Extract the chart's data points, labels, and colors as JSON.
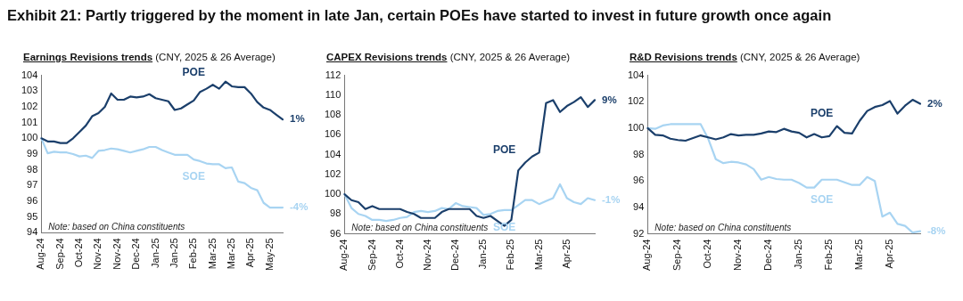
{
  "chart_data": [
    {
      "type": "other",
      "title": "Exhibit 21: Partly triggered by the moment in late Jan, certain POEs have started to invest in future growth once again"
    },
    {
      "type": "line",
      "title": "Earnings Revisions trends",
      "subtitle": "(CNY, 2025 & 26 Average)",
      "categories": [
        "Aug-24",
        null,
        null,
        "Sep-24",
        null,
        null,
        "Oct-24",
        null,
        null,
        "Nov-24",
        null,
        null,
        "Nov-24",
        null,
        null,
        "Dec-24",
        null,
        null,
        "Jan-25",
        null,
        null,
        "Jan-25",
        null,
        null,
        "Feb-25",
        null,
        null,
        "Mar-25",
        null,
        null,
        "Mar-25",
        null,
        null,
        "Apr-25",
        null,
        null,
        "May-25",
        null,
        null
      ],
      "series": [
        {
          "name": "POE",
          "color": "#1b3f6b",
          "values": [
            100,
            99.8,
            99.8,
            99.7,
            99.7,
            100,
            100.4,
            100.8,
            101.4,
            101.6,
            102,
            102.85,
            102.45,
            102.45,
            102.65,
            102.6,
            102.65,
            102.8,
            102.55,
            102.45,
            102.35,
            101.8,
            101.9,
            102.15,
            102.4,
            102.95,
            103.15,
            103.4,
            103.15,
            103.6,
            103.3,
            103.25,
            103.25,
            102.85,
            102.3,
            101.95,
            101.8,
            101.5,
            101.2
          ]
        },
        {
          "name": "SOE",
          "color": "#a8d4f2",
          "values": [
            100,
            99.05,
            99.15,
            99.1,
            99.1,
            99,
            98.85,
            98.9,
            98.75,
            99.2,
            99.25,
            99.35,
            99.3,
            99.2,
            99.1,
            99.2,
            99.3,
            99.45,
            99.45,
            99.25,
            99.1,
            98.95,
            98.95,
            98.95,
            98.65,
            98.55,
            98.4,
            98.35,
            98.35,
            98.1,
            98.15,
            97.25,
            97.15,
            96.85,
            96.7,
            95.9,
            95.6,
            95.6,
            95.6
          ]
        }
      ],
      "ylim": [
        94,
        104
      ],
      "yticks": [
        94,
        95,
        96,
        97,
        98,
        99,
        100,
        101,
        102,
        103,
        104
      ],
      "grid": false,
      "legend": false,
      "marker": "none",
      "line_style": "solid",
      "annotations": [
        "1%",
        "-4%",
        "Note: based on China constituents"
      ]
    },
    {
      "type": "line",
      "title": "CAPEX Revisions trends",
      "subtitle": "(CNY, 2025 & 26 Average)",
      "categories": [
        "Aug-24",
        null,
        null,
        null,
        "Sep-24",
        null,
        null,
        null,
        "Oct-24",
        null,
        null,
        null,
        "Nov-24",
        null,
        null,
        null,
        "Dec-24",
        null,
        null,
        null,
        "Jan-25",
        null,
        null,
        null,
        "Feb-25",
        null,
        null,
        null,
        "Mar-25",
        null,
        null,
        null,
        "Apr-25",
        null,
        null,
        null,
        null
      ],
      "series": [
        {
          "name": "POE",
          "color": "#1b3f6b",
          "values": [
            100,
            99.4,
            99.2,
            98.5,
            98.8,
            98.5,
            98.5,
            98.5,
            98.5,
            98.2,
            98,
            97.6,
            97.6,
            97.6,
            98.2,
            98.5,
            98.5,
            98.5,
            98.5,
            97.8,
            97.6,
            97.8,
            97.3,
            96.8,
            97.4,
            102.4,
            103.2,
            103.8,
            104.2,
            109.2,
            109.5,
            108.3,
            108.9,
            109.3,
            109.8,
            108.8,
            109.5
          ]
        },
        {
          "name": "SOE",
          "color": "#a8d4f2",
          "values": [
            100,
            98.6,
            98,
            97.8,
            97.4,
            97.4,
            97.3,
            97.4,
            97.6,
            97.7,
            98.2,
            98.3,
            98.2,
            98.3,
            98.6,
            98.5,
            99.1,
            98.8,
            98.7,
            98.6,
            97.9,
            98,
            98.3,
            98.4,
            98.4,
            98.9,
            99.4,
            99.4,
            99,
            99.3,
            99.6,
            101,
            99.6,
            99.2,
            99,
            99.6,
            99.4
          ]
        }
      ],
      "ylim": [
        96,
        112
      ],
      "yticks": [
        96,
        98,
        100,
        102,
        104,
        106,
        108,
        110,
        112
      ],
      "grid": false,
      "legend": false,
      "marker": "none",
      "line_style": "solid",
      "annotations": [
        "9%",
        "-1%",
        "Note: based on China constituents"
      ]
    },
    {
      "type": "line",
      "title": "R&D Revisions trends",
      "subtitle": "(CNY, 2025 & 26 Average)",
      "categories": [
        "Aug-24",
        null,
        null,
        null,
        "Sep-24",
        null,
        null,
        null,
        "Oct-24",
        null,
        null,
        null,
        "Nov-24",
        null,
        null,
        null,
        "Dec-24",
        null,
        null,
        null,
        "Jan-25",
        null,
        null,
        null,
        "Feb-25",
        null,
        null,
        null,
        "Mar-25",
        null,
        null,
        null,
        "Apr-25",
        null,
        null,
        null,
        null
      ],
      "series": [
        {
          "name": "POE",
          "color": "#1b3f6b",
          "values": [
            100,
            99.5,
            99.45,
            99.2,
            99.1,
            99.05,
            99.25,
            99.45,
            99.3,
            99.15,
            99.3,
            99.55,
            99.45,
            99.5,
            99.5,
            99.6,
            99.75,
            99.7,
            99.95,
            99.75,
            99.65,
            99.3,
            99.55,
            99.3,
            99.4,
            100.15,
            99.65,
            99.6,
            100.55,
            101.3,
            101.6,
            101.75,
            102.05,
            101.1,
            101.7,
            102.15,
            101.85
          ]
        },
        {
          "name": "SOE",
          "color": "#a8d4f2",
          "values": [
            100,
            99.95,
            100.2,
            100.3,
            100.3,
            100.3,
            100.3,
            100.3,
            99.2,
            97.65,
            97.35,
            97.45,
            97.4,
            97.25,
            96.9,
            96.1,
            96.3,
            96.15,
            96.1,
            96.1,
            95.85,
            95.5,
            95.5,
            96.1,
            96.1,
            96.1,
            95.9,
            95.7,
            95.7,
            96.3,
            96,
            93.3,
            93.6,
            92.75,
            92.6,
            92.1,
            92.2
          ]
        }
      ],
      "ylim": [
        92,
        104
      ],
      "yticks": [
        92,
        94,
        96,
        98,
        100,
        102,
        104
      ],
      "grid": false,
      "legend": false,
      "marker": "none",
      "line_style": "solid",
      "annotations": [
        "2%",
        "-8%",
        "Note: based on China constituents"
      ]
    }
  ]
}
